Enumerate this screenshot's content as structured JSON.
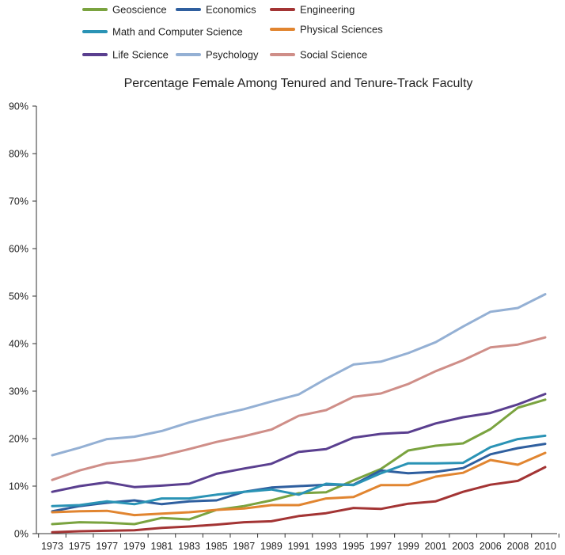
{
  "chart_data": {
    "type": "line",
    "title": "Percentage Female Among Tenured and Tenure-Track Faculty",
    "xlabel": "",
    "ylabel": "",
    "ylim": [
      0,
      90
    ],
    "y_ticks": [
      "0%",
      "10%",
      "20%",
      "30%",
      "40%",
      "50%",
      "60%",
      "70%",
      "80%",
      "90%"
    ],
    "categories": [
      "1973",
      "1975",
      "1977",
      "1979",
      "1981",
      "1983",
      "1985",
      "1987",
      "1989",
      "1991",
      "1993",
      "1995",
      "1997",
      "1999",
      "2001",
      "2003",
      "2006",
      "2008",
      "2010"
    ],
    "legend_position": "top",
    "grid": false,
    "series": [
      {
        "name": "Geoscience",
        "color": "#7aa33f",
        "values": [
          2.0,
          2.4,
          2.3,
          2.0,
          3.3,
          3.0,
          5.0,
          5.8,
          7.0,
          8.5,
          8.7,
          11.2,
          13.6,
          17.5,
          18.5,
          19.0,
          22.0,
          26.5,
          28.2
        ]
      },
      {
        "name": "Economics",
        "color": "#2f5f9f",
        "values": [
          4.7,
          5.8,
          6.5,
          7.0,
          6.2,
          6.8,
          7.0,
          8.8,
          9.7,
          10.0,
          10.3,
          10.3,
          13.3,
          12.7,
          13.0,
          13.8,
          16.7,
          18.0,
          18.9
        ]
      },
      {
        "name": "Engineering",
        "color": "#a33434",
        "values": [
          0.3,
          0.5,
          0.6,
          0.7,
          1.2,
          1.5,
          1.9,
          2.4,
          2.6,
          3.7,
          4.3,
          5.4,
          5.2,
          6.3,
          6.8,
          8.8,
          10.3,
          11.1,
          14.0
        ]
      },
      {
        "name": "Math and Computer Science",
        "color": "#2a93b5",
        "values": [
          5.8,
          6.0,
          6.8,
          6.2,
          7.4,
          7.4,
          8.2,
          8.8,
          9.3,
          8.2,
          10.5,
          10.2,
          12.7,
          14.8,
          14.8,
          14.9,
          18.2,
          19.9,
          20.6
        ]
      },
      {
        "name": "Physical Sciences",
        "color": "#e18530",
        "values": [
          4.5,
          4.7,
          4.8,
          3.9,
          4.2,
          4.5,
          5.0,
          5.3,
          6.0,
          6.0,
          7.4,
          7.7,
          10.2,
          10.2,
          12.0,
          12.8,
          15.5,
          14.5,
          17.0
        ]
      },
      {
        "name": "Life Science",
        "color": "#5a3f8f",
        "values": [
          8.8,
          10.0,
          10.8,
          9.8,
          10.1,
          10.5,
          12.6,
          13.7,
          14.7,
          17.2,
          17.8,
          20.2,
          21.0,
          21.3,
          23.2,
          24.5,
          25.4,
          27.2,
          29.4
        ]
      },
      {
        "name": "Psychology",
        "color": "#94b0d4",
        "values": [
          16.5,
          18.1,
          19.9,
          20.4,
          21.6,
          23.4,
          24.9,
          26.2,
          27.8,
          29.3,
          32.6,
          35.6,
          36.2,
          38.0,
          40.3,
          43.6,
          46.7,
          47.5,
          50.4
        ]
      },
      {
        "name": "Social Science",
        "color": "#cf8e88",
        "values": [
          11.3,
          13.3,
          14.8,
          15.4,
          16.4,
          17.8,
          19.3,
          20.5,
          21.9,
          24.8,
          26.0,
          28.8,
          29.5,
          31.5,
          34.2,
          36.5,
          39.2,
          39.8,
          41.3
        ]
      }
    ]
  }
}
